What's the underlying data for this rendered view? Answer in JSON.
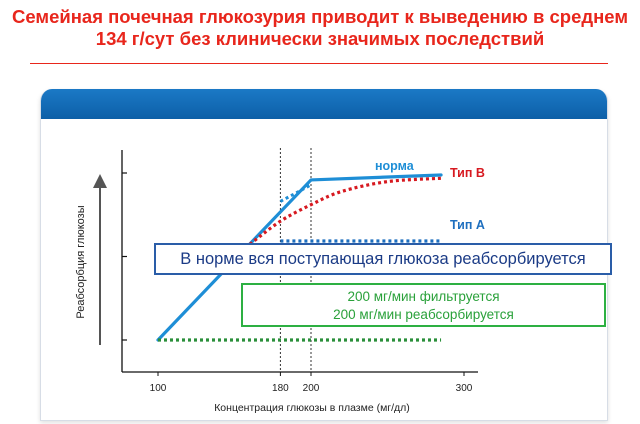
{
  "title": {
    "line1": "Семейная почечная глюкозурия приводит  к выведению в среднем",
    "line2": "134 г/сут без клинически значимых последствий"
  },
  "callouts": {
    "normal": "В норме вся поступающая глюкоза реабсорбируется",
    "green_line1": "200 мг/мин фильтруется",
    "green_line2": "200 мг/мин реабсорбируется"
  },
  "colors": {
    "title": "#e8261c",
    "header": "#1070bf",
    "norm": "#1e8ed6",
    "type_b": "#d71920",
    "type_a": "#1e6fbf",
    "filtered": "#2a8f3a"
  },
  "chart_data": {
    "type": "line",
    "xlabel": "Концентрация  глюкозы в плазме (мг/дл)",
    "ylabel": "Реабсорбция  глюкозы",
    "xticks": [
      100,
      180,
      200,
      300
    ],
    "xlim": [
      100,
      300
    ],
    "ylim": [
      0,
      100
    ],
    "ytick_count": 3,
    "vertical_reference_lines": [
      180,
      200
    ],
    "series": [
      {
        "name": "норма",
        "style": "solid",
        "color": "#1e8ed6",
        "x": [
          100,
          200,
          285
        ],
        "y": [
          0,
          97,
          100
        ]
      },
      {
        "name": "Тип B",
        "style": "dotted",
        "color": "#d71920",
        "x": [
          160,
          180,
          200,
          220,
          250,
          285
        ],
        "y": [
          58,
          72,
          82,
          90,
          96,
          98
        ]
      },
      {
        "name": "Тип A",
        "style": "dotted",
        "color": "#1e6fbf",
        "x": [
          180,
          200,
          285
        ],
        "y": [
          60,
          60,
          60
        ]
      },
      {
        "name": "",
        "style": "dotted-nearly-straight",
        "color": "#1e8ed6",
        "x": [
          180,
          200
        ],
        "y": [
          84,
          94
        ]
      },
      {
        "name": "",
        "style": "dotted",
        "color": "#2a8f3a",
        "x": [
          100,
          285
        ],
        "y": [
          0,
          0
        ]
      }
    ]
  }
}
